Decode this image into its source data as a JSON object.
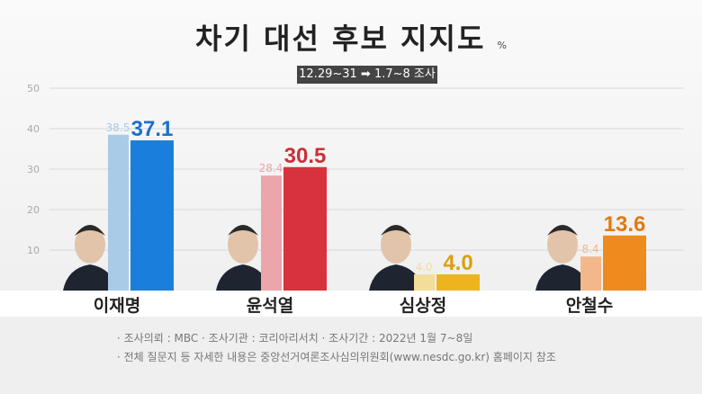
{
  "title": "차기 대선 후보 지지도",
  "unit": "%",
  "period_label": "12.29~31 ➡ 1.7~8 조사",
  "chart_data": {
    "type": "bar",
    "categories": [
      "이재명",
      "윤석열",
      "심상정",
      "안철수"
    ],
    "series": [
      {
        "name": "12.29~31",
        "values": [
          38.5,
          28.4,
          4.0,
          8.4
        ]
      },
      {
        "name": "1.7~8",
        "values": [
          37.1,
          30.5,
          4.0,
          13.6
        ]
      }
    ],
    "ylim": [
      0,
      50
    ],
    "yticks": [
      10,
      20,
      30,
      40,
      50
    ],
    "grid": true,
    "colors": {
      "prev": [
        "#a9cbe8",
        "#eba5ab",
        "#f3dd9a",
        "#f3b88a"
      ],
      "curr": [
        "#1a7fdc",
        "#d8323c",
        "#edb51d",
        "#ee8b1f"
      ],
      "curr_label": [
        "#1a6fd0",
        "#c9313a",
        "#d9a010",
        "#e07b10"
      ]
    }
  },
  "footnotes": [
    "· 조사의뢰 : MBC     · 조사기관 : 코리아리서치     · 조사기간 : 2022년 1월 7~8일",
    "· 전체 질문지 등 자세한 내용은 중앙선거여론조사심의위원회(www.nesdc.go.kr) 홈페이지 참조"
  ]
}
